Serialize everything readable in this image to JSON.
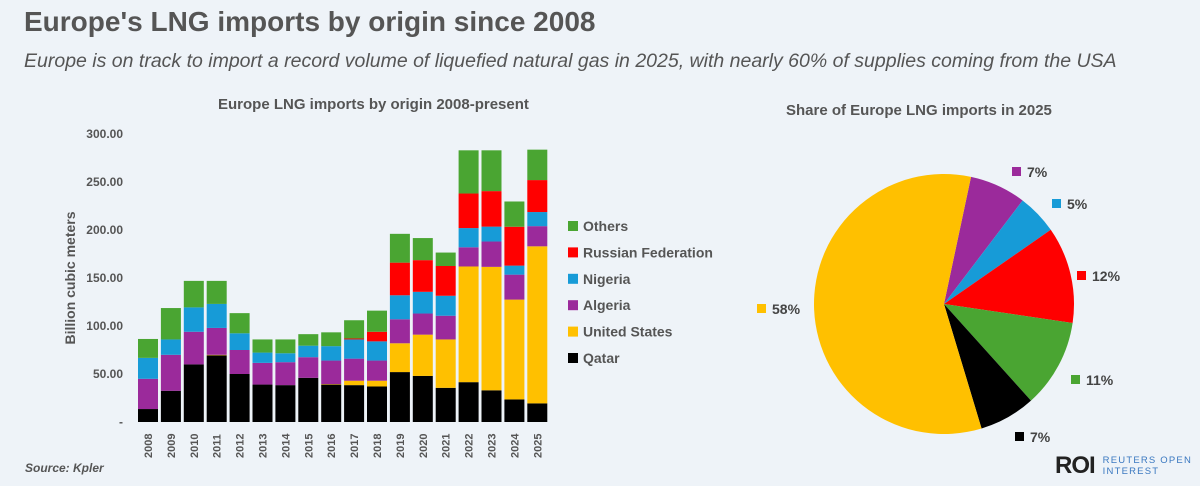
{
  "title": "Europe's LNG imports by origin since 2008",
  "subtitle": "Europe is on track to import a record volume of liquefied natural gas in 2025, with nearly 60% of supplies coming from the USA",
  "source": "Source:  Kpler",
  "logo": {
    "mark": "ROI",
    "line1": "REUTERS OPEN",
    "line2": "INTEREST"
  },
  "chart_data": [
    {
      "type": "bar",
      "stacked": true,
      "title": "Europe LNG imports by origin 2008-present",
      "ylabel": "Billion cubic meters",
      "xlabel": "",
      "ylim": [
        0,
        300
      ],
      "yticks": [
        "-",
        "50.00",
        "100.00",
        "150.00",
        "200.00",
        "250.00",
        "300.00"
      ],
      "grid": false,
      "legend_position": "right",
      "categories": [
        "2008",
        "2009",
        "2010",
        "2011",
        "2012",
        "2013",
        "2014",
        "2015",
        "2016",
        "2017",
        "2018",
        "2019",
        "2020",
        "2021",
        "2022",
        "2023",
        "2024",
        "2025"
      ],
      "series": [
        {
          "name": "Qatar",
          "color": "#000000",
          "values": [
            13.5,
            32.5,
            60,
            69.5,
            50,
            39,
            38.4,
            46,
            39,
            38.4,
            37,
            52,
            48,
            35.6,
            41.5,
            33,
            23.5,
            19.4
          ]
        },
        {
          "name": "United States",
          "color": "#ffc000",
          "values": [
            0,
            0,
            0,
            0.5,
            0,
            0,
            0,
            0,
            0.5,
            4.6,
            6,
            30,
            43,
            50.4,
            120.5,
            128.6,
            104,
            163.6
          ]
        },
        {
          "name": "Algeria",
          "color": "#9b2a9b",
          "values": [
            31.5,
            37.5,
            34,
            28,
            25,
            22.6,
            23.9,
            21.5,
            24.5,
            23,
            21,
            25,
            22,
            24.7,
            20,
            26.4,
            26,
            21
          ]
        },
        {
          "name": "Nigeria",
          "color": "#179bd7",
          "values": [
            21.8,
            16,
            25.4,
            25,
            17.4,
            10.7,
            9.3,
            12,
            15,
            20,
            20,
            25,
            22.6,
            20.8,
            20,
            15.5,
            9.4,
            14.7
          ]
        },
        {
          "name": "Russian Federation",
          "color": "#ff0000",
          "values": [
            0,
            0,
            0,
            0,
            0,
            0,
            0,
            0,
            0,
            1,
            10,
            34,
            33,
            31,
            36,
            37,
            40.5,
            33.3
          ]
        },
        {
          "name": "Others",
          "color": "#4aa532",
          "values": [
            19.7,
            32.7,
            27.6,
            24,
            21,
            13.7,
            14.4,
            12,
            14.4,
            19,
            22,
            30,
            23,
            14,
            45,
            42.5,
            26.3,
            31.7
          ]
        }
      ],
      "legend_order": [
        "Others",
        "Russian Federation",
        "Nigeria",
        "Algeria",
        "United States",
        "Qatar"
      ]
    },
    {
      "type": "pie",
      "title": "Share of Europe LNG imports in 2025",
      "slices": [
        {
          "name": "Algeria",
          "value": 7,
          "label": "7%",
          "color": "#9b2a9b"
        },
        {
          "name": "Nigeria",
          "value": 5,
          "label": "5%",
          "color": "#179bd7"
        },
        {
          "name": "Russian Federation",
          "value": 12,
          "label": "12%",
          "color": "#ff0000"
        },
        {
          "name": "Others",
          "value": 11,
          "label": "11%",
          "color": "#4aa532"
        },
        {
          "name": "Qatar",
          "value": 7,
          "label": "7%",
          "color": "#000000"
        },
        {
          "name": "United States",
          "value": 58,
          "label": "58%",
          "color": "#ffc000"
        }
      ]
    }
  ]
}
